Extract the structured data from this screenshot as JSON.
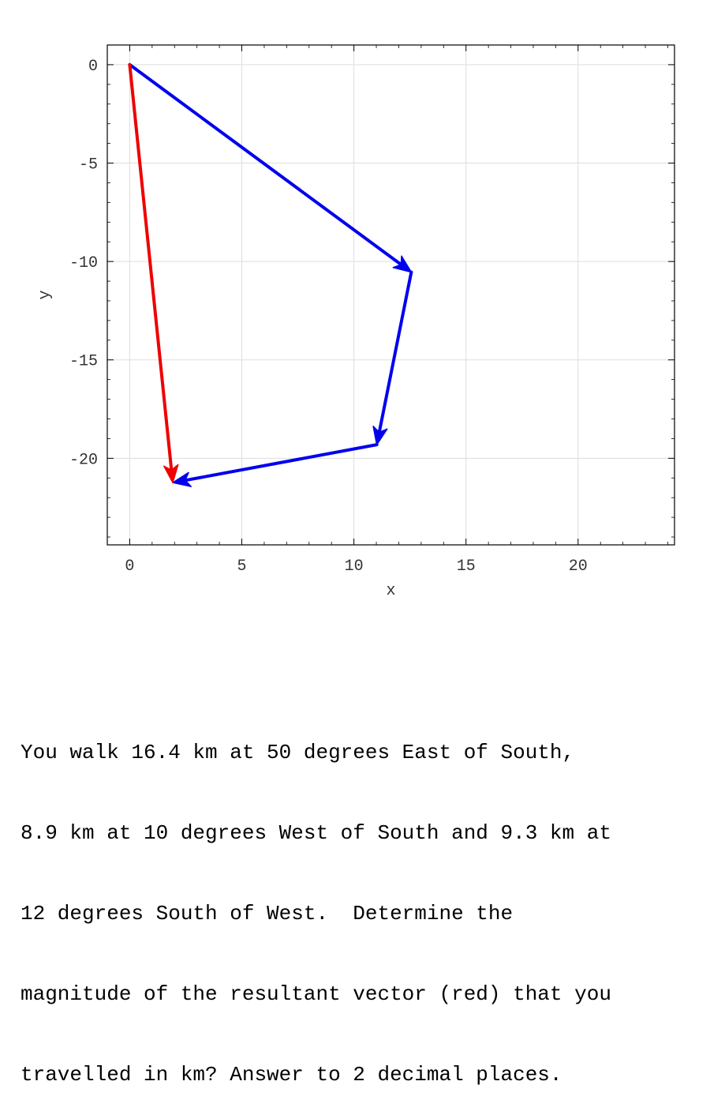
{
  "chart_data": {
    "type": "vector-diagram",
    "xlabel": "x",
    "ylabel": "y",
    "xlim": [
      -1,
      24.3
    ],
    "ylim": [
      -24.4,
      1
    ],
    "grid": true,
    "x_ticks": [
      0,
      5,
      10,
      15,
      20
    ],
    "y_ticks": [
      0,
      -5,
      -10,
      -15,
      -20
    ],
    "tick_labels": {
      "x": [
        "0",
        "5",
        "10",
        "15",
        "20"
      ],
      "y": [
        "0",
        "-5",
        "-10",
        "-15",
        "-20"
      ]
    },
    "series": [
      {
        "color": "#0000ee",
        "values": [
          {
            "from": [
              0,
              0
            ],
            "to": [
              12.56,
              -10.54
            ]
          },
          {
            "from": [
              12.56,
              -10.54
            ],
            "to": [
              11.02,
              -19.31
            ]
          },
          {
            "from": [
              11.02,
              -19.31
            ],
            "to": [
              1.92,
              -21.24
            ]
          }
        ]
      },
      {
        "color": "#ee0000",
        "values": [
          {
            "from": [
              0,
              0
            ],
            "to": [
              1.92,
              -21.24
            ]
          }
        ]
      }
    ]
  },
  "question": {
    "lines": [
      "You walk 16.4 km at 50 degrees East of South,",
      "8.9 km at 10 degrees West of South and 9.3 km at",
      "12 degrees South of West.  Determine the",
      "magnitude of the resultant vector (red) that you",
      "travelled in km? Answer to 2 decimal places."
    ]
  }
}
